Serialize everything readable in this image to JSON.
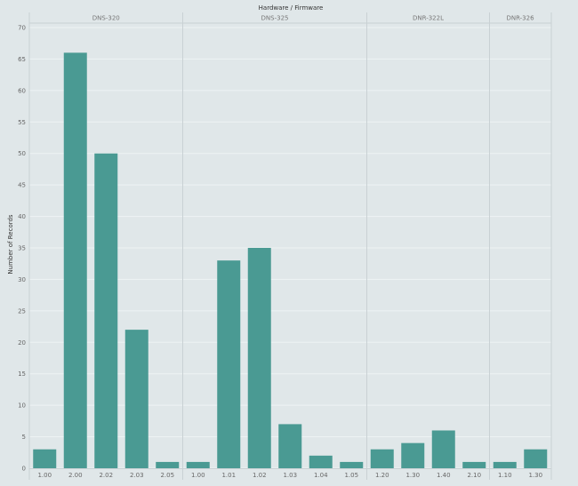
{
  "chart_data": {
    "type": "bar",
    "title": "Hardware / Firmware",
    "xlabel": "",
    "ylabel": "Number of Records",
    "ylim": [
      0,
      70
    ],
    "yticks": [
      0,
      5,
      10,
      15,
      20,
      25,
      30,
      35,
      40,
      45,
      50,
      55,
      60,
      65,
      70
    ],
    "grid": true,
    "bar_color": "#4a9a93",
    "background_color": "#e0e7e9",
    "groups": [
      {
        "name": "DNS-320",
        "categories": [
          "1.00",
          "2.00",
          "2.02",
          "2.03",
          "2.05"
        ],
        "values": [
          3,
          66,
          50,
          22,
          1
        ]
      },
      {
        "name": "DNS-325",
        "categories": [
          "1.00",
          "1.01",
          "1.02",
          "1.03",
          "1.04",
          "1.05"
        ],
        "values": [
          1,
          33,
          35,
          7,
          2,
          1
        ]
      },
      {
        "name": "DNR-322L",
        "categories": [
          "1.20",
          "1.30",
          "1.40",
          "2.10"
        ],
        "values": [
          3,
          4,
          6,
          1
        ]
      },
      {
        "name": "DNR-326",
        "categories": [
          "1.10",
          "1.30"
        ],
        "values": [
          1,
          3
        ]
      }
    ]
  }
}
